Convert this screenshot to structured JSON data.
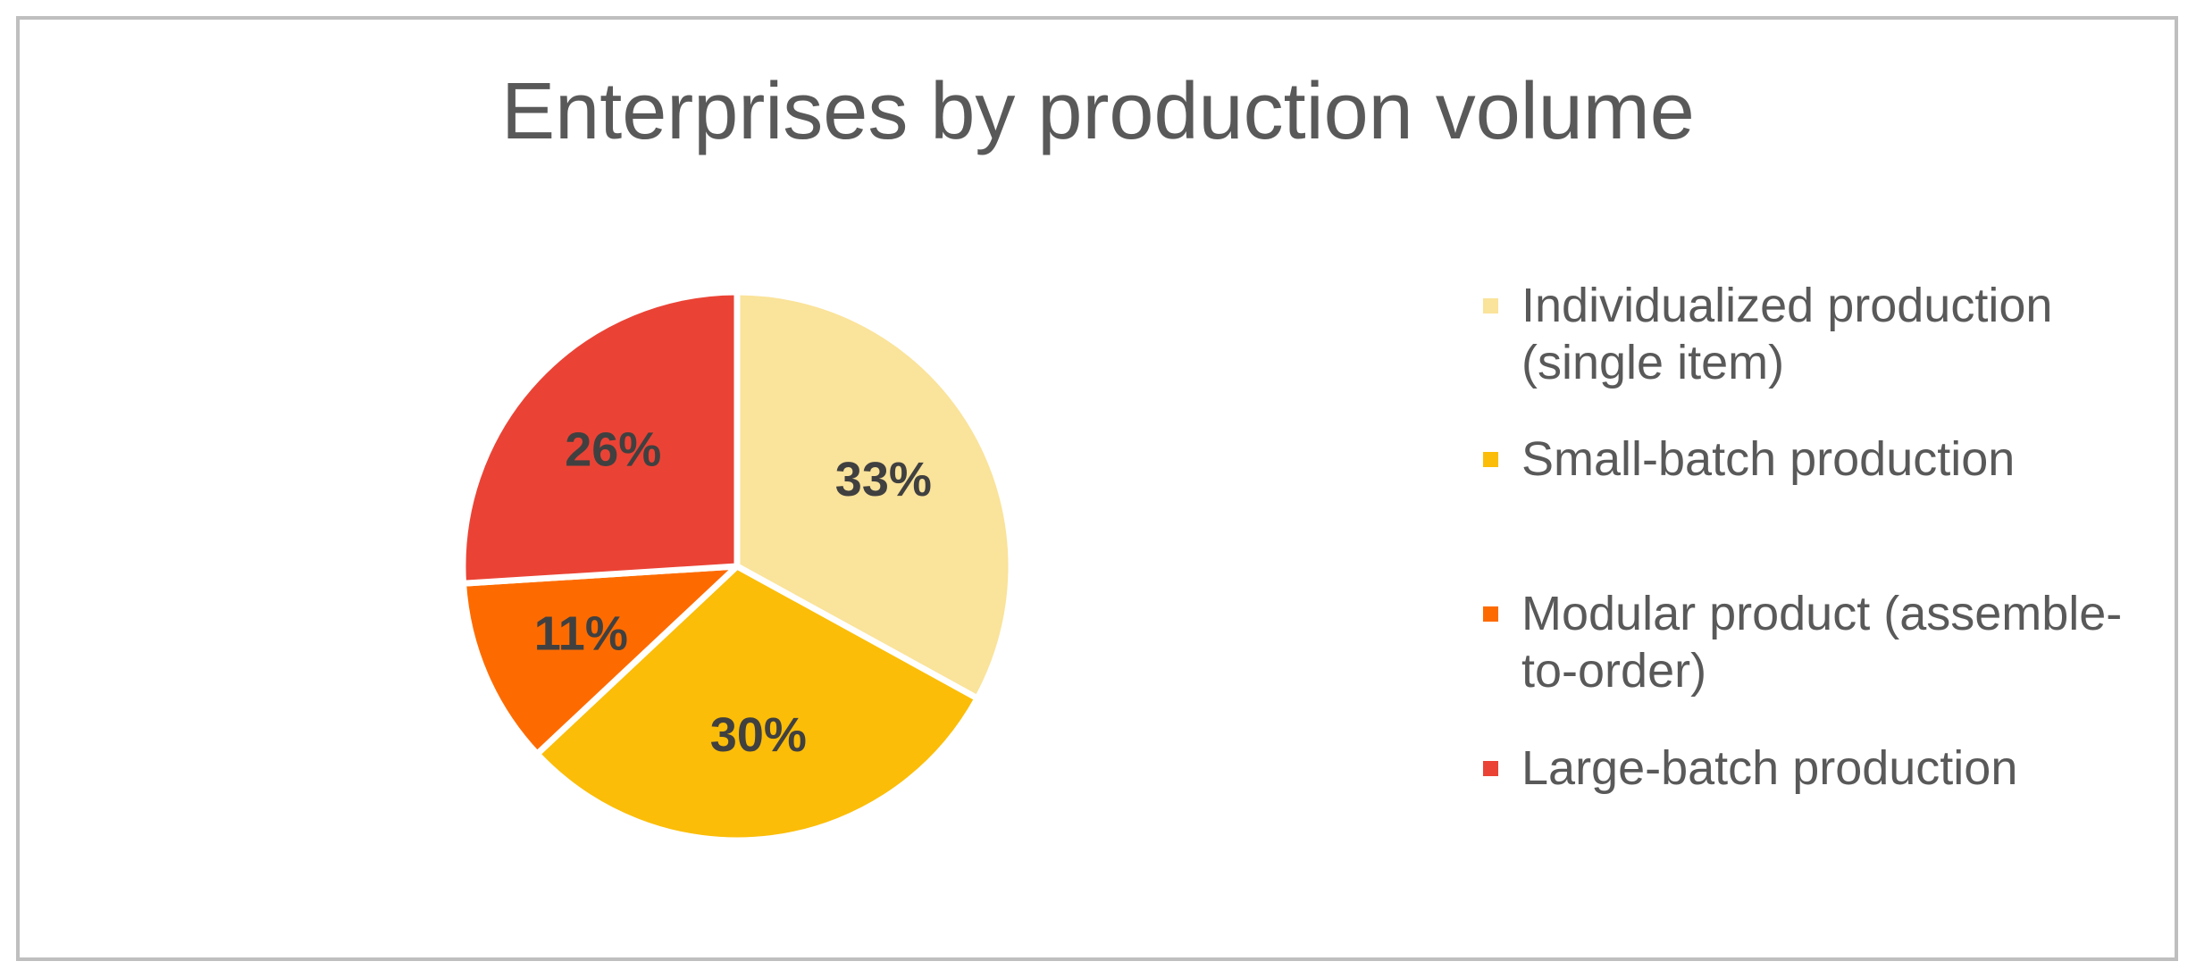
{
  "chart_data": {
    "type": "pie",
    "title": "Enterprises by production volume",
    "slices": [
      {
        "label": "Individualized production (single item)",
        "value": 33,
        "display": "33%",
        "color": "#FAE39A"
      },
      {
        "label": "Small-batch production",
        "value": 30,
        "display": "30%",
        "color": "#FBBD08"
      },
      {
        "label": "Modular product (assemble-to-order)",
        "value": 11,
        "display": "11%",
        "color": "#FD6B00"
      },
      {
        "label": "Large-batch production",
        "value": 26,
        "display": "26%",
        "color": "#EA4335"
      }
    ],
    "legend_position": "right"
  }
}
